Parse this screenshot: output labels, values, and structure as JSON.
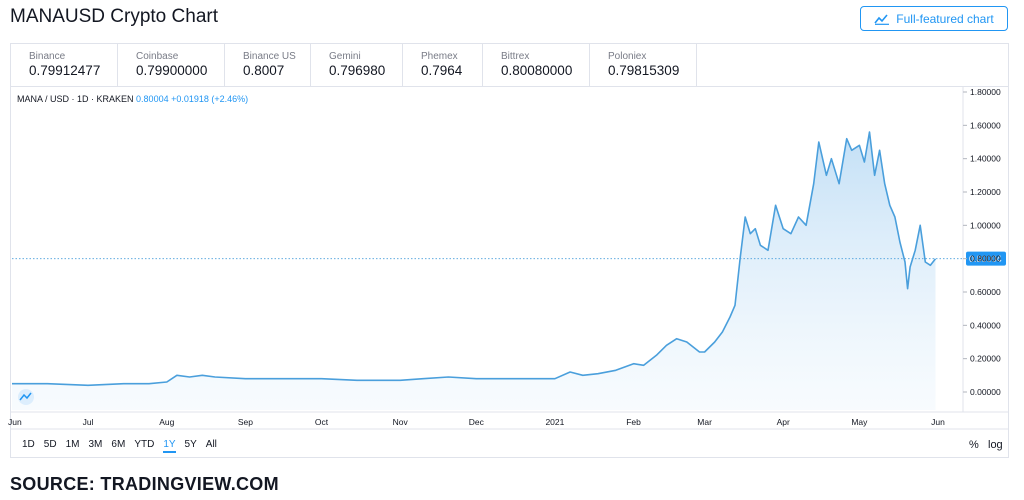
{
  "page": {
    "title": "MANAUSD Crypto Chart",
    "full_featured_label": "Full-featured chart",
    "source": "SOURCE: TRADINGVIEW.COM"
  },
  "quotes": [
    {
      "exchange": "Binance",
      "price": "0.79912477"
    },
    {
      "exchange": "Coinbase",
      "price": "0.79900000"
    },
    {
      "exchange": "Binance US",
      "price": "0.8007"
    },
    {
      "exchange": "Gemini",
      "price": "0.796980"
    },
    {
      "exchange": "Phemex",
      "price": "0.7964"
    },
    {
      "exchange": "Bittrex",
      "price": "0.80080000"
    },
    {
      "exchange": "Poloniex",
      "price": "0.79815309"
    }
  ],
  "legend": {
    "symbol": "MANA / USD · 1D · KRAKEN",
    "last": "0.80004",
    "change": "+0.01918 (+2.46%)"
  },
  "ranges": [
    "1D",
    "5D",
    "1M",
    "3M",
    "6M",
    "YTD",
    "1Y",
    "5Y",
    "All"
  ],
  "active_range": "1Y",
  "scale_buttons": {
    "percent": "%",
    "log": "log"
  },
  "colors": {
    "line": "#4a9fdc",
    "accent": "#2196f3",
    "fill": "#e3f0fb"
  },
  "chart_data": {
    "type": "area",
    "series": [
      {
        "x": [
          "2020-06-01",
          "2020-06-15",
          "2020-07-01",
          "2020-07-15",
          "2020-07-25",
          "2020-08-01",
          "2020-08-05",
          "2020-08-10",
          "2020-08-15",
          "2020-08-20",
          "2020-09-01",
          "2020-09-15",
          "2020-10-01",
          "2020-10-15",
          "2020-11-01",
          "2020-11-10",
          "2020-11-20",
          "2020-12-01",
          "2020-12-15",
          "2021-01-01",
          "2021-01-07",
          "2021-01-12",
          "2021-01-18",
          "2021-01-25",
          "2021-02-01",
          "2021-02-05",
          "2021-02-10",
          "2021-02-14",
          "2021-02-18",
          "2021-02-22",
          "2021-02-27",
          "2021-03-01",
          "2021-03-05",
          "2021-03-08",
          "2021-03-11",
          "2021-03-13",
          "2021-03-15",
          "2021-03-17",
          "2021-03-19",
          "2021-03-21",
          "2021-03-23",
          "2021-03-26",
          "2021-03-29",
          "2021-04-01",
          "2021-04-04",
          "2021-04-07",
          "2021-04-10",
          "2021-04-13",
          "2021-04-15",
          "2021-04-18",
          "2021-04-20",
          "2021-04-23",
          "2021-04-26",
          "2021-04-28",
          "2021-05-01",
          "2021-05-03",
          "2021-05-05",
          "2021-05-07",
          "2021-05-09",
          "2021-05-11",
          "2021-05-13",
          "2021-05-15",
          "2021-05-17",
          "2021-05-19",
          "2021-05-20",
          "2021-05-21",
          "2021-05-23",
          "2021-05-25",
          "2021-05-27",
          "2021-05-29",
          "2021-05-31"
        ],
        "y": [
          0.05,
          0.05,
          0.04,
          0.05,
          0.05,
          0.06,
          0.1,
          0.09,
          0.1,
          0.09,
          0.08,
          0.08,
          0.08,
          0.07,
          0.07,
          0.08,
          0.09,
          0.08,
          0.08,
          0.08,
          0.12,
          0.1,
          0.11,
          0.13,
          0.17,
          0.16,
          0.22,
          0.28,
          0.32,
          0.3,
          0.24,
          0.24,
          0.3,
          0.36,
          0.45,
          0.52,
          0.8,
          1.05,
          0.95,
          0.98,
          0.88,
          0.85,
          1.12,
          0.98,
          0.95,
          1.05,
          1.0,
          1.25,
          1.5,
          1.3,
          1.4,
          1.25,
          1.52,
          1.45,
          1.48,
          1.38,
          1.56,
          1.3,
          1.45,
          1.25,
          1.12,
          1.05,
          0.9,
          0.78,
          0.62,
          0.75,
          0.85,
          1.0,
          0.78,
          0.76,
          0.8
        ]
      }
    ],
    "last_value": "0.80004",
    "x_ticks": [
      "Jun",
      "Jul",
      "Aug",
      "Sep",
      "Oct",
      "Nov",
      "Dec",
      "2021",
      "Feb",
      "Mar",
      "Apr",
      "May",
      "Jun"
    ],
    "y_ticks": [
      "1.80000",
      "1.60000",
      "1.40000",
      "1.20000",
      "1.00000",
      "0.80000",
      "0.60000",
      "0.40000",
      "0.20000",
      "0.00000"
    ],
    "ylim": [
      -0.1,
      1.8
    ],
    "grid": false
  }
}
